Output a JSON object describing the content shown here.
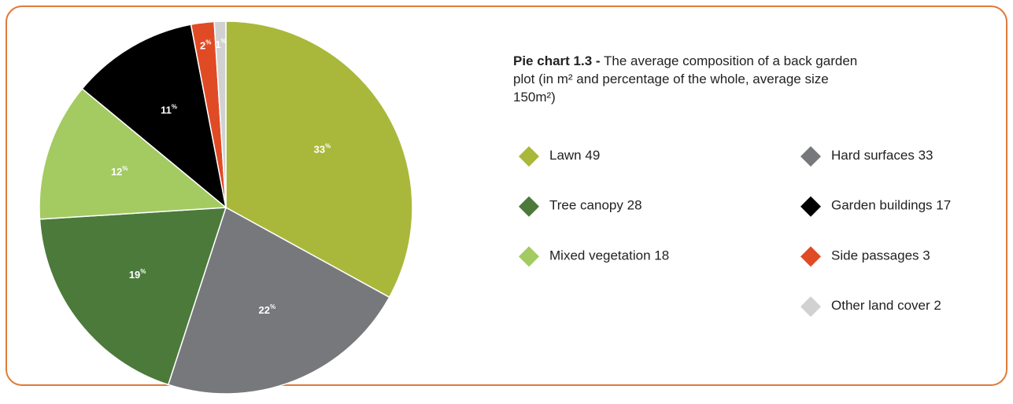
{
  "chart_data": {
    "type": "pie",
    "title_prefix": "Pie chart 1.3 -",
    "title": "The average composition of a back garden plot (in m² and percentage of the whole, average size 150m²)",
    "categories": [
      "Lawn",
      "Hard surfaces",
      "Tree canopy",
      "Mixed vegetation",
      "Garden buildings",
      "Side passages",
      "Other land cover"
    ],
    "values": [
      33,
      22,
      19,
      12,
      11,
      2,
      1
    ],
    "unit": "%",
    "areas": [
      49,
      33,
      28,
      18,
      17,
      3,
      2
    ],
    "colors": [
      "#a9b83a",
      "#77787b",
      "#4b7a3b",
      "#a3cb62",
      "#000000",
      "#e04b25",
      "#d1d1d1"
    ]
  }
}
